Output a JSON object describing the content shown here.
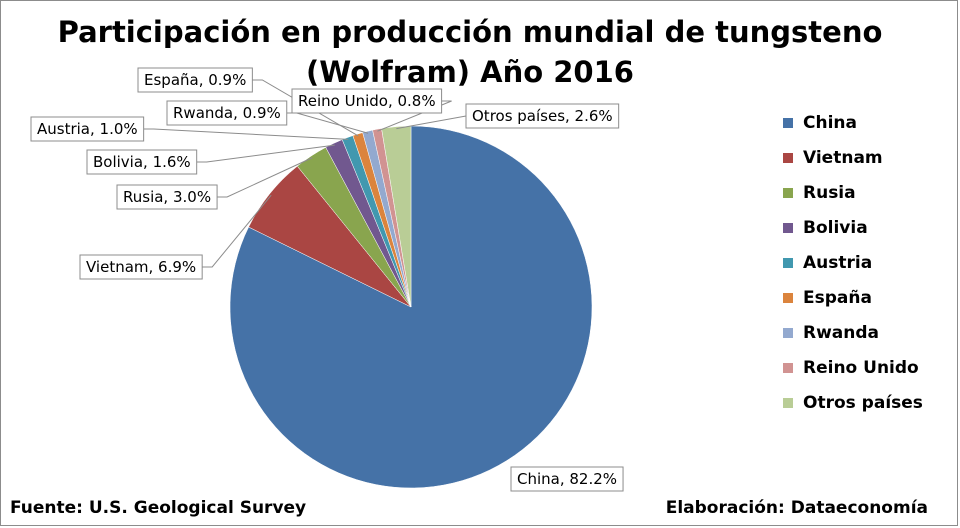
{
  "chart_data": {
    "type": "pie",
    "title_line1": "Participación en producción mundial de tungsteno",
    "title_line2": "(Wolfram) Año 2016",
    "categories": [
      "China",
      "Vietnam",
      "Rusia",
      "Bolivia",
      "Austria",
      "España",
      "Rwanda",
      "Reino Unido",
      "Otros países"
    ],
    "values": [
      82.2,
      6.9,
      3.0,
      1.6,
      1.0,
      0.9,
      0.9,
      0.8,
      2.6
    ],
    "data_labels": [
      "China, 82.2%",
      "Vietnam, 6.9%",
      "Rusia, 3.0%",
      "Bolivia, 1.6%",
      "Austria, 1.0%",
      "España, 0.9%",
      "Rwanda, 0.9%",
      "Reino Unido, 0.8%",
      "Otros países, 2.6%"
    ],
    "colors": [
      "#4572a7",
      "#aa4643",
      "#89a54e",
      "#71588f",
      "#4198af",
      "#db843d",
      "#93a9cf",
      "#d19392",
      "#b9cd96"
    ],
    "legend_position": "right"
  },
  "footer": {
    "source": "Fuente: U.S. Geological Survey",
    "credit": "Elaboración: Dataeconomía"
  }
}
